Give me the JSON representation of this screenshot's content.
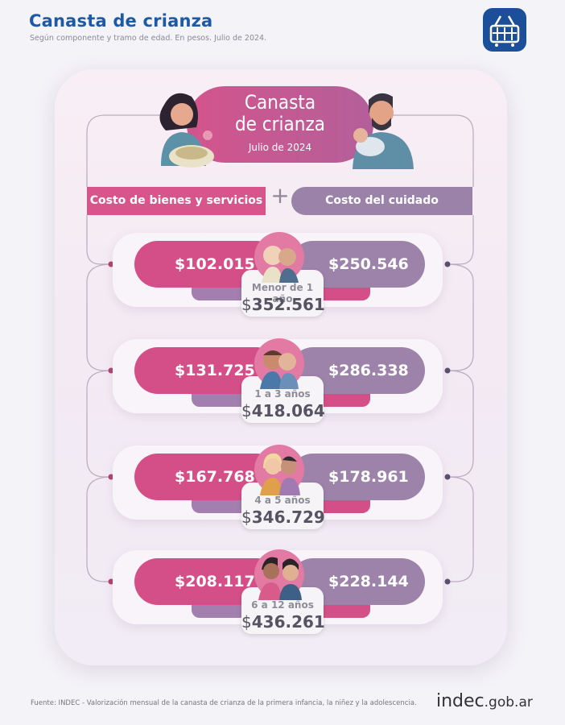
{
  "header": {
    "title": "Canasta de crianza",
    "subtitle": "Según componente y tramo de edad. En pesos. Julio de 2024."
  },
  "badge": {
    "icon": "basket-icon",
    "color": "#1b4f9a"
  },
  "card": {
    "title_line1": "Canasta",
    "title_line2": "de crianza",
    "date": "Julio de 2024"
  },
  "columns": {
    "left": "Costo de bienes y servicios",
    "plus": "+",
    "right": "Costo del cuidado"
  },
  "rows": [
    {
      "age": "Menor de 1 año",
      "goods": "$102.015",
      "care": "$250.546",
      "total_sign": "$",
      "total": "352.561"
    },
    {
      "age": "1 a 3 años",
      "goods": "$131.725",
      "care": "$286.338",
      "total_sign": "$",
      "total": "418.064"
    },
    {
      "age": "4 a 5 años",
      "goods": "$167.768",
      "care": "$178.961",
      "total_sign": "$",
      "total": "346.729"
    },
    {
      "age": "6 a 12 años",
      "goods": "$208.117",
      "care": "$228.144",
      "total_sign": "$",
      "total": "436.261"
    }
  ],
  "footer": {
    "source": "Fuente: INDEC - Valorización mensual de la canasta de crianza de la primera infancia, la niñez y la adolescencia.",
    "brand_main": "indec",
    "brand_domain": ".gob.ar"
  },
  "colors": {
    "title_blue": "#1b5aa6",
    "pink": "#d44f88",
    "purple": "#9d83aa"
  }
}
